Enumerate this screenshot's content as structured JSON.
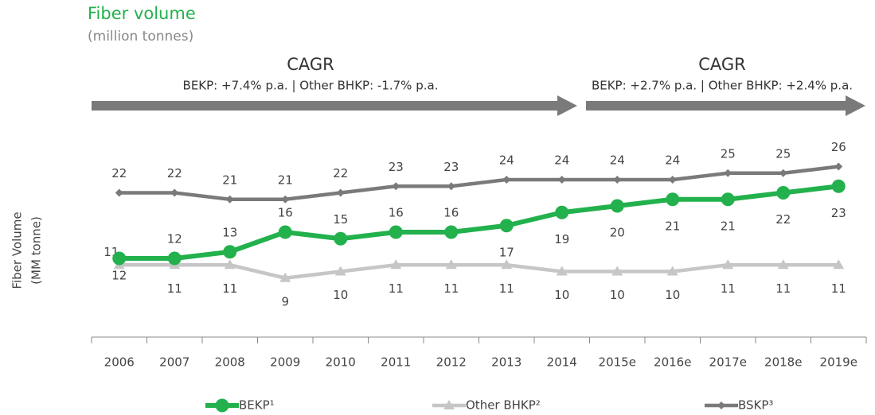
{
  "chart_data": {
    "type": "line",
    "title": "Fiber volume",
    "subtitle": "(million tonnes)",
    "y_label": [
      "Fiber Volume",
      "(MM tonne)"
    ],
    "annotations": [
      {
        "title": "CAGR",
        "text": "BEKP: +7.4% p.a. | Other BHKP: -1.7% p.a."
      },
      {
        "title": "CAGR",
        "text": "BEKP: +2.7% p.a.  | Other BHKP: +2.4% p.a."
      }
    ],
    "categories": [
      "2006",
      "2007",
      "2008",
      "2009",
      "2010",
      "2011",
      "2012",
      "2013",
      "2014",
      "2015e",
      "2016e",
      "2017e",
      "2018e",
      "2019e"
    ],
    "series": [
      {
        "name": "BEKP¹",
        "color": "#22b14c",
        "marker": "circle",
        "values": [
          12,
          12,
          13,
          16,
          15,
          16,
          16,
          17,
          19,
          20,
          21,
          21,
          22,
          23
        ]
      },
      {
        "name": "Other BHKP²",
        "color": "#c6c6c6",
        "marker": "triangle",
        "values": [
          11,
          11,
          11,
          9,
          10,
          11,
          11,
          11,
          10,
          10,
          10,
          11,
          11,
          11
        ]
      },
      {
        "name": "BSKP³",
        "color": "#7a7a7a",
        "marker": "diamond",
        "values": [
          22,
          22,
          21,
          21,
          22,
          23,
          23,
          24,
          24,
          24,
          24,
          25,
          25,
          26
        ]
      }
    ],
    "ylim": [
      0,
      30
    ],
    "grid": false,
    "legend": "bottom"
  }
}
